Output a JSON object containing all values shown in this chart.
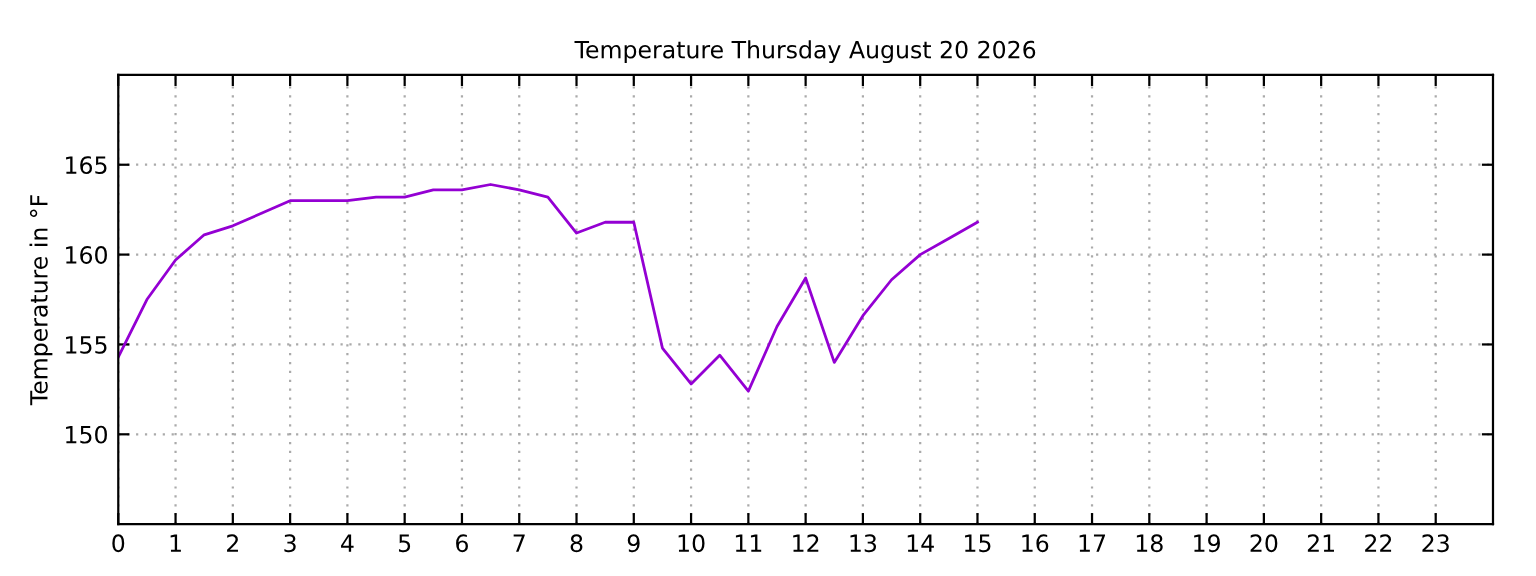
{
  "chart_data": {
    "type": "line",
    "title": "Temperature Thursday August 20 2026",
    "ylabel": "Temperature in °F",
    "x": [
      0,
      0.5,
      1,
      1.5,
      2,
      2.5,
      3,
      3.5,
      4,
      4.5,
      5,
      5.5,
      6,
      6.5,
      7,
      7.5,
      8,
      8.5,
      9,
      9.5,
      10,
      10.5,
      11,
      11.5,
      12,
      12.5,
      13,
      13.5,
      14,
      14.5,
      15
    ],
    "series": [
      {
        "color": "#9400d3",
        "values": [
          154.3,
          157.5,
          159.7,
          161.1,
          161.6,
          162.3,
          163,
          163,
          163,
          163.2,
          163.2,
          163.6,
          163.6,
          163.9,
          163.6,
          163.2,
          161.2,
          161.8,
          161.8,
          154.8,
          152.8,
          154.4,
          152.4,
          156,
          158.7,
          154,
          156.6,
          158.6,
          160,
          160.9,
          161.8
        ]
      }
    ],
    "xlim": [
      0,
      24
    ],
    "xticks": [
      0,
      1,
      2,
      3,
      4,
      5,
      6,
      7,
      8,
      9,
      10,
      11,
      12,
      13,
      14,
      15,
      16,
      17,
      18,
      19,
      20,
      21,
      22,
      23
    ],
    "ylim": [
      145,
      170
    ],
    "yticks": [
      150,
      155,
      160,
      165
    ],
    "grid": true,
    "line_style": "solid"
  }
}
